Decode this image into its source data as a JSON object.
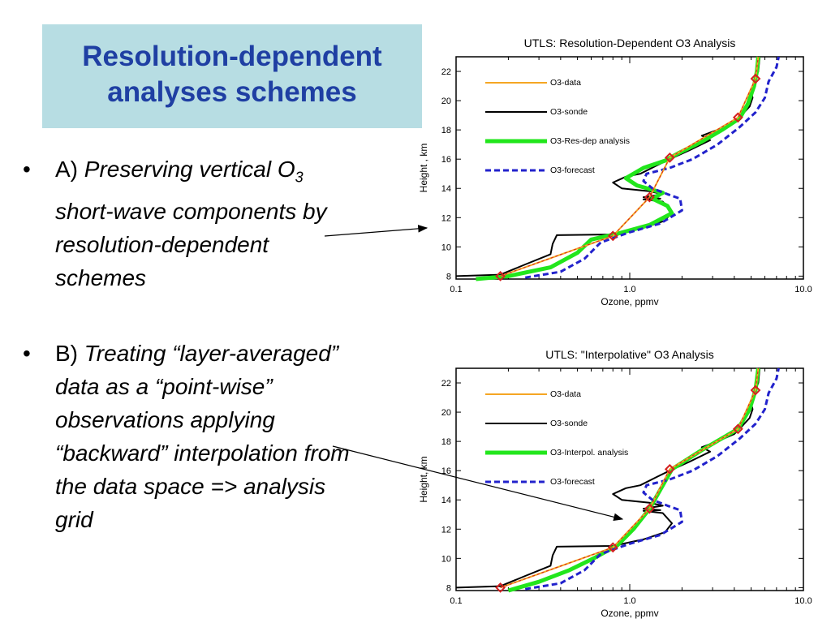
{
  "slide": {
    "title_line1": "Resolution-dependent",
    "title_line2": "analyses schemes",
    "bullet_symbol": "•",
    "bullet_a": {
      "prefix": "A) ",
      "line1": "Preserving vertical O",
      "subscript": "3",
      "line2": "short-wave components by",
      "line3": "resolution-dependent",
      "line4": "schemes"
    },
    "bullet_b": {
      "prefix": "B) ",
      "line1": "Treating “layer-averaged”",
      "line2": "data as a “point-wise”",
      "line3": "observations applying",
      "line4": "“backward” interpolation from",
      "line5": "the data space => analysis",
      "line6": "grid"
    }
  },
  "colors": {
    "title_bg": "#b7dde3",
    "title_text": "#1f3fa3",
    "o3_data": "#f5a623",
    "o3_sonde": "#000000",
    "analysis": "#22e61c",
    "forecast": "#2222cc",
    "marker": "#d42020"
  },
  "chart_data": [
    {
      "type": "line",
      "title": "UTLS: Resolution-Dependent O3 Analysis",
      "xlabel": "Ozone, ppmv",
      "ylabel": "Height , km",
      "xscale": "log",
      "xlim": [
        0.1,
        10.0
      ],
      "ylim": [
        7.8,
        23
      ],
      "x_ticks": [
        0.1,
        1.0,
        10.0
      ],
      "x_tick_labels": [
        "0.1",
        "1.0",
        "10.0"
      ],
      "y_ticks": [
        8,
        10,
        12,
        14,
        16,
        18,
        20,
        22
      ],
      "legend_position": "top-left",
      "series": [
        {
          "name": "O3-data",
          "style": "o3data",
          "points": [
            [
              0.18,
              8
            ],
            [
              0.8,
              10.75
            ],
            [
              1.3,
              13.4
            ],
            [
              1.7,
              16.1
            ],
            [
              4.2,
              18.85
            ],
            [
              5.3,
              21.5
            ],
            [
              5.5,
              23
            ]
          ]
        },
        {
          "name": "O3-sonde",
          "style": "sonde",
          "points": [
            [
              0.1,
              8
            ],
            [
              0.18,
              8.1
            ],
            [
              0.25,
              8.8
            ],
            [
              0.35,
              9.5
            ],
            [
              0.36,
              10.2
            ],
            [
              0.38,
              10.8
            ],
            [
              0.8,
              10.85
            ],
            [
              1.2,
              11.3
            ],
            [
              1.6,
              11.8
            ],
            [
              1.75,
              12.4
            ],
            [
              1.55,
              13.1
            ],
            [
              1.2,
              13.25
            ],
            [
              1.5,
              13.3
            ],
            [
              1.2,
              13.4
            ],
            [
              1.55,
              13.6
            ],
            [
              1.3,
              13.8
            ],
            [
              0.9,
              14.0
            ],
            [
              0.8,
              14.4
            ],
            [
              0.95,
              14.8
            ],
            [
              1.15,
              15.0
            ],
            [
              1.45,
              15.6
            ],
            [
              1.7,
              16.0
            ],
            [
              2.2,
              16.6
            ],
            [
              2.9,
              17.3
            ],
            [
              2.6,
              17.6
            ],
            [
              3.2,
              18.0
            ],
            [
              4.0,
              18.5
            ],
            [
              4.4,
              19.0
            ],
            [
              4.9,
              19.6
            ],
            [
              5.1,
              20.2
            ],
            [
              5.0,
              20.6
            ],
            [
              5.2,
              21.3
            ],
            [
              5.5,
              22.0
            ],
            [
              5.6,
              23
            ]
          ]
        },
        {
          "name": "O3-Res-dep analysis",
          "style": "analysis",
          "points": [
            [
              0.13,
              7.8
            ],
            [
              0.2,
              8.0
            ],
            [
              0.35,
              8.6
            ],
            [
              0.5,
              9.6
            ],
            [
              0.6,
              10.5
            ],
            [
              0.85,
              10.9
            ],
            [
              1.3,
              11.5
            ],
            [
              1.75,
              12.3
            ],
            [
              1.65,
              12.8
            ],
            [
              1.35,
              13.3
            ],
            [
              1.55,
              13.7
            ],
            [
              1.1,
              14.2
            ],
            [
              0.95,
              14.7
            ],
            [
              1.2,
              15.4
            ],
            [
              1.6,
              15.9
            ],
            [
              1.9,
              16.4
            ],
            [
              2.6,
              17.2
            ],
            [
              3.4,
              18.0
            ],
            [
              4.3,
              18.8
            ],
            [
              4.8,
              19.8
            ],
            [
              5.2,
              21.0
            ],
            [
              5.4,
              22.0
            ],
            [
              5.5,
              23
            ]
          ]
        },
        {
          "name": "O3-forecast",
          "style": "forecast",
          "points": [
            [
              0.25,
              7.9
            ],
            [
              0.4,
              8.3
            ],
            [
              0.55,
              9.2
            ],
            [
              0.68,
              10.3
            ],
            [
              1.0,
              11.0
            ],
            [
              1.5,
              11.6
            ],
            [
              2.0,
              12.5
            ],
            [
              1.95,
              13.3
            ],
            [
              1.65,
              13.6
            ],
            [
              1.35,
              14.0
            ],
            [
              1.2,
              14.5
            ],
            [
              1.25,
              15.0
            ],
            [
              1.7,
              15.4
            ],
            [
              2.3,
              16.0
            ],
            [
              3.2,
              17.0
            ],
            [
              4.3,
              18.2
            ],
            [
              5.3,
              19.2
            ],
            [
              6.0,
              20.2
            ],
            [
              6.3,
              21.3
            ],
            [
              7.0,
              22.3
            ],
            [
              7.2,
              23
            ]
          ]
        }
      ],
      "markers": [
        [
          0.18,
          8
        ],
        [
          0.8,
          10.75
        ],
        [
          1.3,
          13.4
        ],
        [
          1.7,
          16.1
        ],
        [
          4.2,
          18.85
        ],
        [
          5.3,
          21.5
        ]
      ]
    },
    {
      "type": "line",
      "title": "UTLS: \"Interpolative\" O3 Analysis",
      "xlabel": "Ozone, ppmv",
      "ylabel": "Height, km",
      "xscale": "log",
      "xlim": [
        0.1,
        10.0
      ],
      "ylim": [
        7.8,
        23
      ],
      "x_ticks": [
        0.1,
        1.0,
        10.0
      ],
      "x_tick_labels": [
        "0.1",
        "1.0",
        "10.0"
      ],
      "y_ticks": [
        8,
        10,
        12,
        14,
        16,
        18,
        20,
        22
      ],
      "legend_position": "top-left",
      "series": [
        {
          "name": "O3-data",
          "style": "o3data",
          "points": [
            [
              0.18,
              8
            ],
            [
              0.8,
              10.75
            ],
            [
              1.3,
              13.4
            ],
            [
              1.7,
              16.1
            ],
            [
              4.2,
              18.85
            ],
            [
              5.3,
              21.5
            ],
            [
              5.5,
              23
            ]
          ]
        },
        {
          "name": "O3-sonde",
          "style": "sonde",
          "points": [
            [
              0.1,
              8
            ],
            [
              0.18,
              8.1
            ],
            [
              0.25,
              8.8
            ],
            [
              0.35,
              9.5
            ],
            [
              0.36,
              10.2
            ],
            [
              0.38,
              10.8
            ],
            [
              0.8,
              10.85
            ],
            [
              1.2,
              11.3
            ],
            [
              1.6,
              11.8
            ],
            [
              1.75,
              12.4
            ],
            [
              1.55,
              13.1
            ],
            [
              1.2,
              13.25
            ],
            [
              1.5,
              13.3
            ],
            [
              1.2,
              13.4
            ],
            [
              1.55,
              13.6
            ],
            [
              1.3,
              13.8
            ],
            [
              0.9,
              14.0
            ],
            [
              0.8,
              14.4
            ],
            [
              0.95,
              14.8
            ],
            [
              1.15,
              15.0
            ],
            [
              1.45,
              15.6
            ],
            [
              1.7,
              16.0
            ],
            [
              2.2,
              16.6
            ],
            [
              2.9,
              17.3
            ],
            [
              2.6,
              17.6
            ],
            [
              3.2,
              18.0
            ],
            [
              4.0,
              18.5
            ],
            [
              4.4,
              19.0
            ],
            [
              4.9,
              19.6
            ],
            [
              5.1,
              20.2
            ],
            [
              5.0,
              20.6
            ],
            [
              5.2,
              21.3
            ],
            [
              5.5,
              22.0
            ],
            [
              5.6,
              23
            ]
          ]
        },
        {
          "name": "O3-Interpol. analysis",
          "style": "analysis",
          "points": [
            [
              0.2,
              7.8
            ],
            [
              0.3,
              8.4
            ],
            [
              0.45,
              9.2
            ],
            [
              0.62,
              10.0
            ],
            [
              0.85,
              10.9
            ],
            [
              1.05,
              12.0
            ],
            [
              1.3,
              13.4
            ],
            [
              1.5,
              14.7
            ],
            [
              1.75,
              16.1
            ],
            [
              2.6,
              17.4
            ],
            [
              4.2,
              18.85
            ],
            [
              4.9,
              20.2
            ],
            [
              5.3,
              21.5
            ],
            [
              5.5,
              23
            ]
          ]
        },
        {
          "name": "O3-forecast",
          "style": "forecast",
          "points": [
            [
              0.25,
              7.9
            ],
            [
              0.4,
              8.3
            ],
            [
              0.55,
              9.2
            ],
            [
              0.68,
              10.3
            ],
            [
              1.0,
              11.0
            ],
            [
              1.5,
              11.6
            ],
            [
              2.0,
              12.5
            ],
            [
              1.95,
              13.3
            ],
            [
              1.65,
              13.6
            ],
            [
              1.35,
              14.0
            ],
            [
              1.2,
              14.5
            ],
            [
              1.25,
              15.0
            ],
            [
              1.7,
              15.4
            ],
            [
              2.3,
              16.0
            ],
            [
              3.2,
              17.0
            ],
            [
              4.3,
              18.2
            ],
            [
              5.3,
              19.2
            ],
            [
              6.0,
              20.2
            ],
            [
              6.3,
              21.3
            ],
            [
              7.0,
              22.3
            ],
            [
              7.2,
              23
            ]
          ]
        }
      ],
      "markers": [
        [
          0.18,
          8
        ],
        [
          0.8,
          10.75
        ],
        [
          1.3,
          13.4
        ],
        [
          1.7,
          16.1
        ],
        [
          4.2,
          18.85
        ],
        [
          5.3,
          21.5
        ]
      ]
    }
  ]
}
